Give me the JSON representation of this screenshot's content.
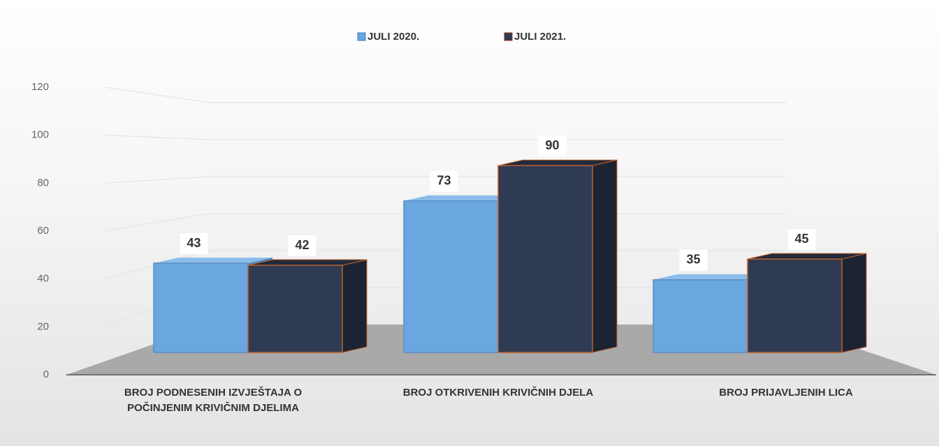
{
  "chart_data": {
    "type": "bar3d",
    "categories": [
      "BROJ PODNESENIH IZVJEŠTAJA O POČINJENIM KRIVIČNIM DJELIMA",
      "BROJ OTKRIVENIH KRIVIČNIH DJELA",
      "BROJ PRIJAVLJENIH LICA"
    ],
    "series": [
      {
        "name": "JULI 2020.",
        "color": "#6aa6e0",
        "values": [
          43,
          73,
          35
        ]
      },
      {
        "name": "JULI 2021.",
        "color": "#2f3b52",
        "values": [
          42,
          90,
          45
        ]
      }
    ],
    "ylim": [
      0,
      120
    ],
    "yticks": [
      0,
      20,
      40,
      60,
      80,
      100,
      120
    ],
    "grid": true,
    "legend": "top"
  }
}
